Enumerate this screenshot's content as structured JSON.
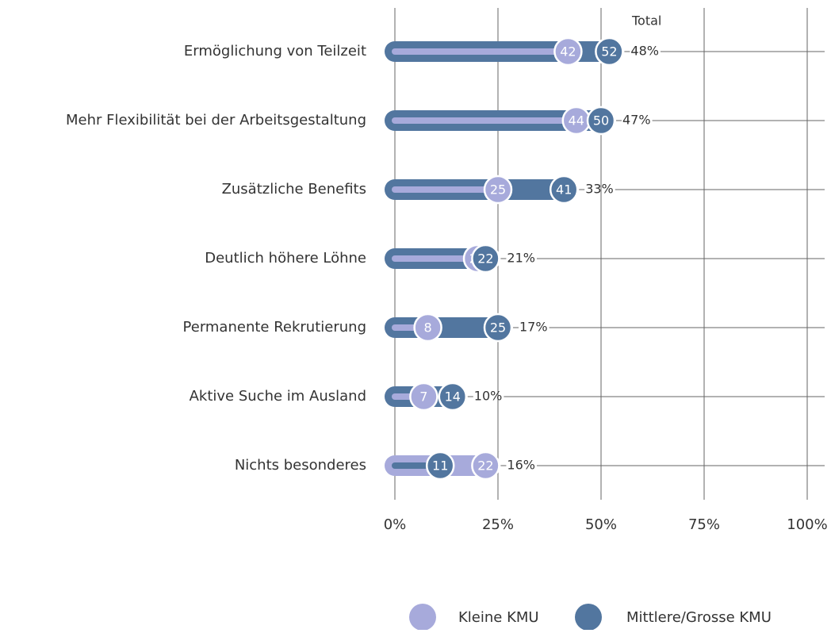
{
  "chart_data": {
    "type": "dumbbell",
    "categories": [
      "Ermöglichung von Teilzeit",
      "Mehr Flexibilität bei der Arbeitsgestaltung",
      "Zusätzliche Benefits",
      "Deutlich höhere Löhne",
      "Permanente Rekrutierung",
      "Aktive Suche im Ausland",
      "Nichts besonderes"
    ],
    "series": [
      {
        "name": "Kleine KMU",
        "color": "#a7aadb",
        "values": [
          42,
          44,
          25,
          20,
          8,
          7,
          22
        ]
      },
      {
        "name": "Mittlere/Grosse KMU",
        "color": "#52769f",
        "values": [
          52,
          50,
          41,
          22,
          25,
          14,
          11
        ]
      },
      {
        "name": "Total",
        "values": [
          48,
          47,
          33,
          21,
          17,
          10,
          16
        ],
        "value_labels": [
          "48%",
          "47%",
          "33%",
          "21%",
          "17%",
          "10%",
          "16%"
        ]
      }
    ],
    "xlim": [
      0,
      100
    ],
    "xticks": [
      {
        "value": 0,
        "label": "0%"
      },
      {
        "value": 25,
        "label": "25%"
      },
      {
        "value": 50,
        "label": "50%"
      },
      {
        "value": 75,
        "label": "75%"
      },
      {
        "value": 100,
        "label": "100%"
      }
    ],
    "grid": true,
    "legend": "bottom"
  }
}
